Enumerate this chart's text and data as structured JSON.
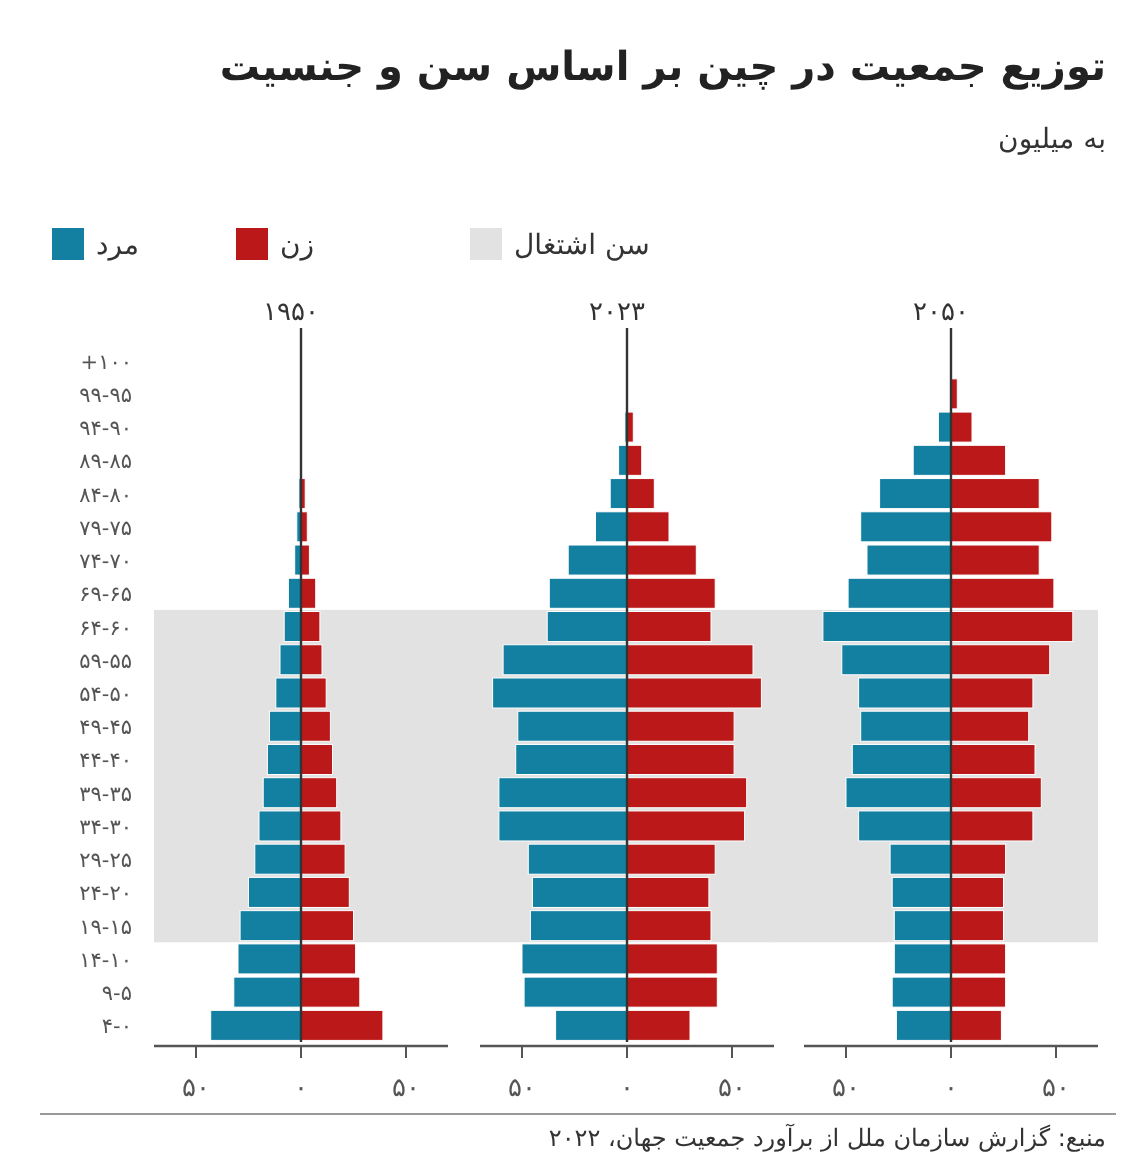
{
  "chart_data": [
    {
      "type": "other",
      "title": "توزیع جمعیت در چین بر اساس سن و جنسیت",
      "subtitle": "به میلیون",
      "annotations": [
        "منبع: گزارش سازمان ملل از برآورد جمعیت جهان، ۲۰۲۲"
      ]
    },
    {
      "type": "bar",
      "orientation": "horizontal",
      "stacked": true,
      "title": "۱۹۵۰",
      "legend": "top",
      "categories": [
        "+۱۰۰",
        "۹۹-۹۵",
        "۹۴-۹۰",
        "۸۹-۸۵",
        "۸۴-۸۰",
        "۷۹-۷۵",
        "۷۴-۷۰",
        "۶۹-۶۵",
        "۶۴-۶۰",
        "۵۹-۵۵",
        "۵۴-۵۰",
        "۴۹-۴۵",
        "۴۴-۴۰",
        "۳۹-۳۵",
        "۳۴-۳۰",
        "۲۹-۲۵",
        "۲۴-۲۰",
        "۱۹-۱۵",
        "۱۴-۱۰",
        "۹-۵",
        "۴-۰"
      ],
      "series": [
        {
          "name": "مرد",
          "color": "#1380a1",
          "values": [
            0,
            0,
            0,
            0,
            -1,
            -2,
            -3,
            -6,
            -8,
            -10,
            -12,
            -15,
            -16,
            -18,
            -20,
            -22,
            -25,
            -29,
            -30,
            -32,
            -43
          ]
        },
        {
          "name": "زن",
          "color": "#bb1919",
          "values": [
            0,
            0,
            0,
            0,
            2,
            3,
            4,
            7,
            9,
            10,
            12,
            14,
            15,
            17,
            19,
            21,
            23,
            25,
            26,
            28,
            39
          ]
        }
      ],
      "xlim": [
        -70,
        70
      ],
      "xticks": [
        {
          "value": -50,
          "label": "۵۰"
        },
        {
          "value": 0,
          "label": "۰"
        },
        {
          "value": 50,
          "label": "۵۰"
        }
      ],
      "bands": [
        {
          "axis": "y",
          "from": "۶۴-۶۰",
          "to": "۱۹-۱۵",
          "label": "سن اشتغال",
          "color": "#e2e2e2"
        }
      ]
    },
    {
      "type": "bar",
      "orientation": "horizontal",
      "stacked": true,
      "title": "۲۰۲۳",
      "tick_labels": "x",
      "categories": [
        "+۱۰۰",
        "۹۹-۹۵",
        "۹۴-۹۰",
        "۸۹-۸۵",
        "۸۴-۸۰",
        "۷۹-۷۵",
        "۷۴-۷۰",
        "۶۹-۶۵",
        "۶۴-۶۰",
        "۵۹-۵۵",
        "۵۴-۵۰",
        "۴۹-۴۵",
        "۴۴-۴۰",
        "۳۹-۳۵",
        "۳۴-۳۰",
        "۲۹-۲۵",
        "۲۴-۲۰",
        "۱۹-۱۵",
        "۱۴-۱۰",
        "۹-۵",
        "۴-۰"
      ],
      "series": [
        {
          "name": "مرد",
          "color": "#1380a1",
          "values": [
            0,
            0,
            -1,
            -4,
            -8,
            -15,
            -28,
            -37,
            -38,
            -59,
            -64,
            -52,
            -53,
            -61,
            -61,
            -47,
            -45,
            -46,
            -50,
            -49,
            -34
          ]
        },
        {
          "name": "زن",
          "color": "#bb1919",
          "values": [
            0,
            0,
            3,
            7,
            13,
            20,
            33,
            42,
            40,
            60,
            64,
            51,
            51,
            57,
            56,
            42,
            39,
            40,
            43,
            43,
            30
          ]
        }
      ],
      "xlim": [
        -70,
        70
      ],
      "xticks": [
        {
          "value": -50,
          "label": "۵۰"
        },
        {
          "value": 0,
          "label": "۰"
        },
        {
          "value": 50,
          "label": "۵۰"
        }
      ],
      "bands": [
        {
          "axis": "y",
          "from": "۶۴-۶۰",
          "to": "۱۹-۱۵",
          "color": "#e2e2e2"
        }
      ]
    },
    {
      "type": "bar",
      "orientation": "horizontal",
      "stacked": true,
      "title": "۲۰۵۰",
      "tick_labels": "x",
      "categories": [
        "+۱۰۰",
        "۹۹-۹۵",
        "۹۴-۹۰",
        "۸۹-۸۵",
        "۸۴-۸۰",
        "۷۹-۷۵",
        "۷۴-۷۰",
        "۶۹-۶۵",
        "۶۴-۶۰",
        "۵۹-۵۵",
        "۵۴-۵۰",
        "۴۹-۴۵",
        "۴۴-۴۰",
        "۳۹-۳۵",
        "۳۴-۳۰",
        "۲۹-۲۵",
        "۲۴-۲۰",
        "۱۹-۱۵",
        "۱۴-۱۰",
        "۹-۵",
        "۴-۰"
      ],
      "series": [
        {
          "name": "مرد",
          "color": "#1380a1",
          "values": [
            0,
            0,
            -6,
            -18,
            -34,
            -43,
            -40,
            -49,
            -61,
            -52,
            -44,
            -43,
            -47,
            -50,
            -44,
            -29,
            -28,
            -27,
            -27,
            -28,
            -26
          ]
        },
        {
          "name": "زن",
          "color": "#bb1919",
          "values": [
            0,
            3,
            10,
            26,
            42,
            48,
            42,
            49,
            58,
            47,
            39,
            37,
            40,
            43,
            39,
            26,
            25,
            25,
            26,
            26,
            24
          ]
        }
      ],
      "xlim": [
        -70,
        70
      ],
      "xticks": [
        {
          "value": -50,
          "label": "۵۰"
        },
        {
          "value": 0,
          "label": "۰"
        },
        {
          "value": 50,
          "label": "۵۰"
        }
      ],
      "bands": [
        {
          "axis": "y",
          "from": "۶۴-۶۰",
          "to": "۱۹-۱۵",
          "color": "#e2e2e2"
        }
      ]
    }
  ]
}
